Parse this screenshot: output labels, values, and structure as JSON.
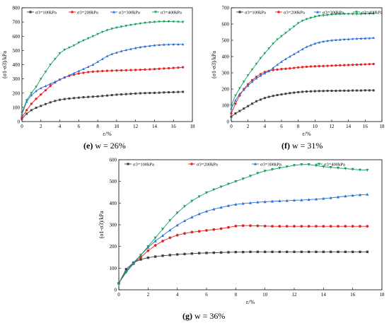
{
  "chart_data": [
    {
      "type": "line",
      "caption_label": "(e)",
      "caption_text": "w = 26%",
      "xlabel": "ε/%",
      "ylabel": "(σ1-σ3)/kPa",
      "xlim": [
        0,
        18
      ],
      "ylim": [
        0,
        800
      ],
      "xticks": [
        0,
        2,
        4,
        6,
        8,
        10,
        12,
        14,
        16,
        18
      ],
      "yticks": [
        0,
        100,
        200,
        300,
        400,
        500,
        600,
        700,
        800
      ],
      "legend_position": "top",
      "x": [
        0,
        0.5,
        1,
        1.5,
        2,
        2.5,
        3,
        3.5,
        4,
        4.5,
        5,
        5.5,
        6,
        6.5,
        7,
        7.5,
        8,
        8.5,
        9,
        9.5,
        10,
        10.5,
        11,
        11.5,
        12,
        12.5,
        13,
        13.5,
        14,
        14.5,
        15,
        15.5,
        16,
        16.5,
        17
      ],
      "series": [
        {
          "name": "σ3=100kPa",
          "color": "#404040",
          "marker": "square",
          "values": [
            20,
            55,
            80,
            97,
            110,
            123,
            135,
            145,
            153,
            158,
            162,
            165,
            168,
            171,
            173,
            175,
            177,
            180,
            183,
            186,
            189,
            191,
            193,
            195,
            197,
            199,
            200,
            201,
            202,
            203,
            205,
            206,
            207,
            208,
            209
          ]
        },
        {
          "name": "σ3=200kPa",
          "color": "#e8201f",
          "marker": "circle",
          "values": [
            30,
            80,
            125,
            160,
            190,
            220,
            250,
            275,
            295,
            310,
            322,
            330,
            338,
            343,
            348,
            351,
            353,
            355,
            357,
            358,
            359,
            360,
            361,
            362,
            363,
            364,
            366,
            367,
            369,
            371,
            373,
            375,
            377,
            379,
            382
          ]
        },
        {
          "name": "σ3=300kPa",
          "color": "#2b6fd6",
          "marker": "triangle-up",
          "values": [
            50,
            140,
            185,
            215,
            235,
            250,
            265,
            280,
            295,
            310,
            325,
            340,
            355,
            370,
            385,
            400,
            420,
            440,
            460,
            475,
            485,
            495,
            503,
            510,
            517,
            523,
            528,
            532,
            536,
            539,
            541,
            542,
            543,
            543,
            543
          ]
        },
        {
          "name": "σ3=400kPa",
          "color": "#16a05c",
          "marker": "triangle-down",
          "values": [
            60,
            150,
            200,
            245,
            300,
            350,
            400,
            440,
            480,
            505,
            520,
            535,
            555,
            570,
            585,
            600,
            615,
            630,
            642,
            652,
            660,
            667,
            673,
            679,
            684,
            689,
            694,
            697,
            700,
            702,
            703,
            703,
            702,
            701,
            700
          ]
        }
      ]
    },
    {
      "type": "line",
      "caption_label": "(f)",
      "caption_text": "w = 31%",
      "xlabel": "ε/%",
      "ylabel": "(σ1-σ3)/kPa",
      "xlim": [
        0,
        18
      ],
      "ylim": [
        0,
        700
      ],
      "xticks": [
        0,
        2,
        4,
        6,
        8,
        10,
        12,
        14,
        16,
        18
      ],
      "yticks": [
        0,
        100,
        200,
        300,
        400,
        500,
        600,
        700
      ],
      "legend_position": "top",
      "x": [
        0,
        0.5,
        1,
        1.5,
        2,
        2.5,
        3,
        3.5,
        4,
        4.5,
        5,
        5.5,
        6,
        6.5,
        7,
        7.5,
        8,
        8.5,
        9,
        9.5,
        10,
        10.5,
        11,
        11.5,
        12,
        12.5,
        13,
        13.5,
        14,
        14.5,
        15,
        15.5,
        16,
        16.5,
        17
      ],
      "series": [
        {
          "name": "σ3=100kPa",
          "color": "#404040",
          "marker": "square",
          "values": [
            30,
            50,
            65,
            80,
            95,
            110,
            125,
            135,
            145,
            152,
            158,
            163,
            167,
            171,
            175,
            178,
            181,
            183,
            185,
            186,
            187,
            188,
            188,
            189,
            189,
            189,
            190,
            190,
            190,
            191,
            191,
            191,
            192,
            192,
            192
          ]
        },
        {
          "name": "σ3=200kPa",
          "color": "#e8201f",
          "marker": "circle",
          "values": [
            50,
            110,
            160,
            200,
            230,
            255,
            275,
            292,
            305,
            312,
            317,
            320,
            323,
            325,
            327,
            330,
            333,
            335,
            337,
            339,
            340,
            341,
            342,
            343,
            344,
            345,
            346,
            347,
            348,
            349,
            350,
            351,
            352,
            353,
            354
          ]
        },
        {
          "name": "σ3=300kPa",
          "color": "#2b6fd6",
          "marker": "triangle-up",
          "values": [
            80,
            130,
            170,
            195,
            220,
            245,
            265,
            282,
            297,
            310,
            330,
            350,
            368,
            385,
            400,
            415,
            430,
            445,
            460,
            470,
            480,
            487,
            493,
            497,
            500,
            502,
            504,
            506,
            507,
            509,
            510,
            511,
            512,
            513,
            515
          ]
        },
        {
          "name": "σ3=400kPa",
          "color": "#16a05c",
          "marker": "triangle-down",
          "values": [
            100,
            160,
            205,
            245,
            285,
            320,
            355,
            390,
            420,
            450,
            480,
            505,
            525,
            545,
            565,
            585,
            605,
            620,
            630,
            638,
            645,
            650,
            653,
            656,
            658,
            660,
            661,
            662,
            662,
            662,
            662,
            662,
            663,
            663,
            663
          ]
        }
      ]
    },
    {
      "type": "line",
      "caption_label": "(g)",
      "caption_text": "w = 36%",
      "xlabel": "ε/%",
      "ylabel": "(σ1-σ3)/kPa",
      "xlim": [
        0,
        18
      ],
      "ylim": [
        0,
        600
      ],
      "xticks": [
        0,
        2,
        4,
        6,
        8,
        10,
        12,
        14,
        16,
        18
      ],
      "yticks": [
        0,
        100,
        200,
        300,
        400,
        500,
        600
      ],
      "legend_position": "top",
      "x": [
        0,
        0.5,
        1,
        1.5,
        2,
        2.5,
        3,
        3.5,
        4,
        4.5,
        5,
        5.5,
        6,
        6.5,
        7,
        7.5,
        8,
        8.5,
        9,
        9.5,
        10,
        10.5,
        11,
        11.5,
        12,
        12.5,
        13,
        13.5,
        14,
        14.5,
        15,
        15.5,
        16,
        16.5,
        17
      ],
      "series": [
        {
          "name": "σ3=100kPa",
          "color": "#404040",
          "marker": "square",
          "values": [
            30,
            95,
            125,
            140,
            148,
            153,
            157,
            160,
            163,
            165,
            167,
            169,
            170,
            171,
            172,
            173,
            174,
            174,
            175,
            175,
            175,
            175,
            175,
            175,
            175,
            175,
            175,
            175,
            175,
            175,
            175,
            175,
            175,
            175,
            175
          ]
        },
        {
          "name": "σ3=200kPa",
          "color": "#e8201f",
          "marker": "circle",
          "values": [
            30,
            85,
            120,
            150,
            180,
            205,
            225,
            240,
            252,
            260,
            266,
            270,
            274,
            278,
            282,
            288,
            294,
            296,
            296,
            295,
            294,
            293,
            293,
            293,
            293,
            293,
            293,
            293,
            293,
            293,
            293,
            293,
            293,
            293,
            293
          ]
        },
        {
          "name": "σ3=300kPa",
          "color": "#2b6fd6",
          "marker": "triangle-up",
          "values": [
            30,
            85,
            125,
            160,
            195,
            225,
            250,
            275,
            298,
            318,
            335,
            350,
            362,
            372,
            380,
            388,
            394,
            398,
            401,
            404,
            406,
            408,
            410,
            411,
            413,
            414,
            416,
            418,
            421,
            424,
            428,
            432,
            435,
            438,
            440
          ]
        },
        {
          "name": "σ3=400kPa",
          "color": "#16a05c",
          "marker": "triangle-down",
          "values": [
            30,
            80,
            120,
            160,
            200,
            240,
            280,
            320,
            355,
            385,
            410,
            430,
            448,
            462,
            475,
            488,
            500,
            512,
            525,
            538,
            548,
            555,
            562,
            568,
            574,
            578,
            578,
            573,
            568,
            565,
            562,
            559,
            556,
            553,
            552
          ]
        }
      ]
    }
  ]
}
